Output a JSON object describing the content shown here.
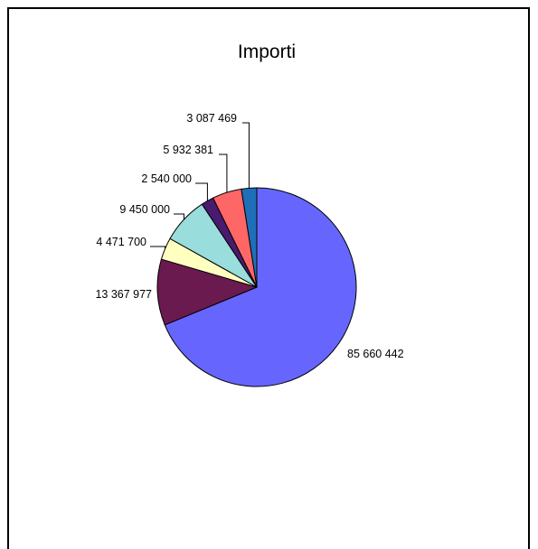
{
  "chart_data": {
    "type": "pie",
    "title": "Importi",
    "slices": [
      {
        "label": "85 660 442",
        "value": 85660442,
        "color": "#6666ff"
      },
      {
        "label": "13 367 977",
        "value": 13367977,
        "color": "#6b1a4f"
      },
      {
        "label": "4 471 700",
        "value": 4471700,
        "color": "#ffffc0"
      },
      {
        "label": "9 450 000",
        "value": 9450000,
        "color": "#99dddd"
      },
      {
        "label": "2 540 000",
        "value": 2540000,
        "color": "#4a1a6e"
      },
      {
        "label": "5 932 381",
        "value": 5932381,
        "color": "#ff6666"
      },
      {
        "label": "3 087 469",
        "value": 3087469,
        "color": "#1f6fb8"
      }
    ],
    "legend": "none"
  }
}
